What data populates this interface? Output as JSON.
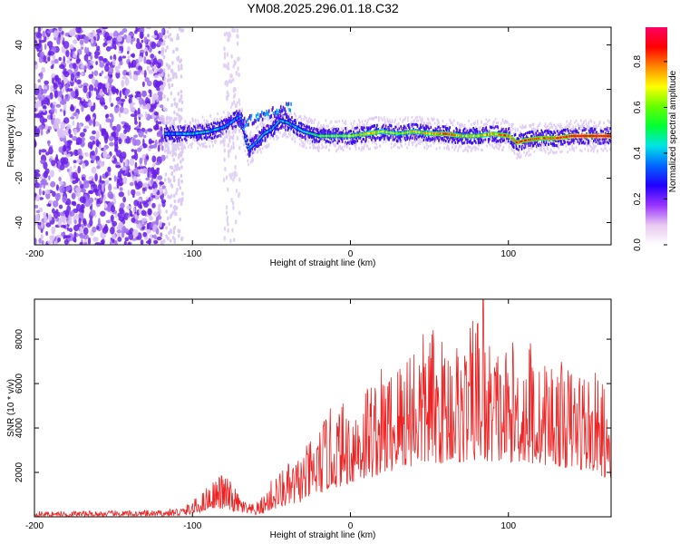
{
  "page": {
    "title": "YM08.2025.296.01.18.C32"
  },
  "chart_data": [
    {
      "id": "spectrogram",
      "type": "heatmap",
      "title": "YM08.2025.296.01.18.C32",
      "xlabel": "Height of straight line (km)",
      "ylabel": "Frequency (Hz)",
      "xlim": [
        -200,
        165
      ],
      "ylim": [
        -50,
        48
      ],
      "x_ticks": [
        -200,
        -100,
        0,
        100
      ],
      "x_tick_labels": [
        "-200",
        "-100",
        "0",
        "100"
      ],
      "y_ticks": [
        -40,
        -20,
        0,
        20,
        40
      ],
      "y_tick_labels": [
        "-40",
        "-20",
        "0",
        "20",
        "40"
      ],
      "noise_region": {
        "x_range": [
          -200,
          -118
        ],
        "y_range": [
          -50,
          48
        ],
        "amplitude": 0.15
      },
      "ridge": {
        "description": "narrow high-amplitude band near 0 Hz",
        "x": [
          -118,
          -100,
          -90,
          -80,
          -70,
          -65,
          -60,
          -55,
          -50,
          -45,
          -40,
          -35,
          -30,
          -20,
          -10,
          0,
          10,
          20,
          30,
          40,
          50,
          60,
          70,
          80,
          90,
          100,
          105,
          110,
          120,
          130,
          140,
          150,
          160,
          165
        ],
        "frequency": [
          0,
          0,
          1,
          3,
          8,
          -7,
          -4,
          0,
          2,
          6,
          5,
          3,
          1,
          -1,
          -1,
          -1,
          0,
          1,
          0,
          1,
          0,
          0,
          -1,
          -1,
          0,
          -1,
          -4,
          -3,
          -2,
          -2,
          -1,
          -1,
          -1,
          -1
        ],
        "amplitude": [
          0.35,
          0.4,
          0.45,
          0.4,
          0.35,
          0.4,
          0.4,
          0.45,
          0.45,
          0.45,
          0.45,
          0.4,
          0.5,
          0.55,
          0.6,
          0.65,
          0.7,
          0.65,
          0.6,
          0.7,
          0.75,
          0.8,
          0.7,
          0.7,
          0.75,
          0.8,
          0.85,
          0.85,
          0.8,
          0.85,
          0.9,
          0.95,
          0.95,
          0.95
        ]
      },
      "colorbar": {
        "label": "Normalized spectral amplitude",
        "range": [
          0,
          0.95
        ],
        "ticks": [
          0.0,
          0.2,
          0.4,
          0.6,
          0.8
        ],
        "tick_labels": [
          "0.0",
          "0.2",
          "0.4",
          "0.6",
          "0.8"
        ],
        "colors": [
          "#ffffff",
          "#e8c8f0",
          "#9933ff",
          "#2200ff",
          "#0066ff",
          "#00e5e5",
          "#00ff33",
          "#66ff00",
          "#ffff00",
          "#ff8800",
          "#ff0000",
          "#ff0066"
        ]
      }
    },
    {
      "id": "snr",
      "type": "line",
      "xlabel": "Height of straight line (km)",
      "ylabel": "SNR (10 * v/v)",
      "xlim": [
        -200,
        165
      ],
      "ylim": [
        0,
        9800
      ],
      "x_ticks": [
        -200,
        -100,
        0,
        100
      ],
      "x_tick_labels": [
        "-200",
        "-100",
        "0",
        "100"
      ],
      "y_ticks": [
        2000,
        4000,
        6000,
        8000
      ],
      "y_tick_labels": [
        "2000",
        "4000",
        "6000",
        "8000"
      ],
      "line_color": "#ee2222",
      "envelope": {
        "x": [
          -200,
          -120,
          -105,
          -95,
          -90,
          -85,
          -80,
          -75,
          -70,
          -65,
          -60,
          -55,
          -50,
          -45,
          -40,
          -35,
          -30,
          -25,
          -20,
          -15,
          -10,
          -5,
          0,
          5,
          10,
          15,
          20,
          25,
          30,
          35,
          40,
          45,
          50,
          55,
          60,
          65,
          70,
          75,
          80,
          85,
          90,
          95,
          100,
          105,
          110,
          115,
          120,
          125,
          130,
          135,
          140,
          145,
          150,
          155,
          160,
          165
        ],
        "low": [
          30,
          30,
          50,
          200,
          350,
          400,
          300,
          250,
          200,
          100,
          80,
          150,
          300,
          400,
          500,
          550,
          700,
          900,
          1000,
          1200,
          1300,
          1400,
          1500,
          1600,
          1700,
          1800,
          1900,
          2000,
          2100,
          2200,
          2300,
          2300,
          2400,
          2400,
          2400,
          2500,
          2400,
          2500,
          2500,
          2400,
          2500,
          2400,
          2400,
          2500,
          2400,
          2300,
          2400,
          2300,
          2300,
          2200,
          2200,
          2100,
          2100,
          2000,
          1800,
          1600
        ],
        "high": [
          250,
          300,
          500,
          1000,
          1500,
          1800,
          2100,
          1500,
          1000,
          600,
          600,
          1000,
          1700,
          2100,
          2400,
          2600,
          3000,
          3500,
          4000,
          4800,
          5000,
          5200,
          5400,
          5800,
          6400,
          6500,
          6800,
          6900,
          7200,
          8200,
          8600,
          8200,
          9100,
          8000,
          8200,
          8400,
          8000,
          8300,
          9800,
          7900,
          8200,
          7700,
          7800,
          8000,
          7700,
          8500,
          6600,
          7500,
          7100,
          7000,
          6800,
          7200,
          6600,
          6500,
          6300,
          3000
        ],
        "peak_x": 84,
        "peak_value": 9800
      }
    }
  ]
}
